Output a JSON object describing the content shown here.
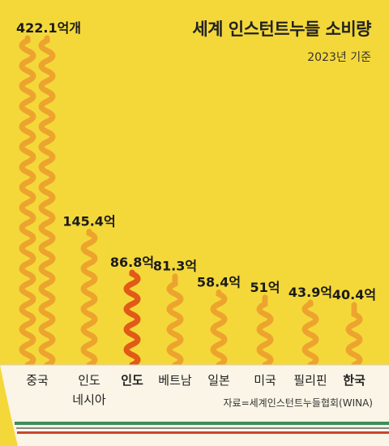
{
  "chart_data": {
    "type": "bar",
    "title": "세계 인스턴트누들 소비량",
    "subtitle": "2023년 기준",
    "source": "자료=세계인스턴트누들협회(WINA)",
    "categories": [
      "중국",
      "인도\n네시아",
      "인도",
      "베트남",
      "일본",
      "미국",
      "필리핀",
      "한국"
    ],
    "values": [
      422.1,
      145.4,
      86.8,
      81.3,
      58.4,
      51,
      43.9,
      40.4
    ],
    "value_labels": [
      "422.1억개",
      "145.4억",
      "86.8억",
      "81.3억",
      "58.4억",
      "51억",
      "43.9억",
      "40.4억"
    ],
    "highlighted": [
      "인도",
      "한국"
    ],
    "colors": {
      "background": "#f4d83a",
      "noodle": "#eda42e",
      "noodle_highlight": "#e15a17",
      "bowl": "#fbf5e7",
      "stripe_green": "#3c8f59",
      "stripe_red": "#c9472b"
    }
  }
}
